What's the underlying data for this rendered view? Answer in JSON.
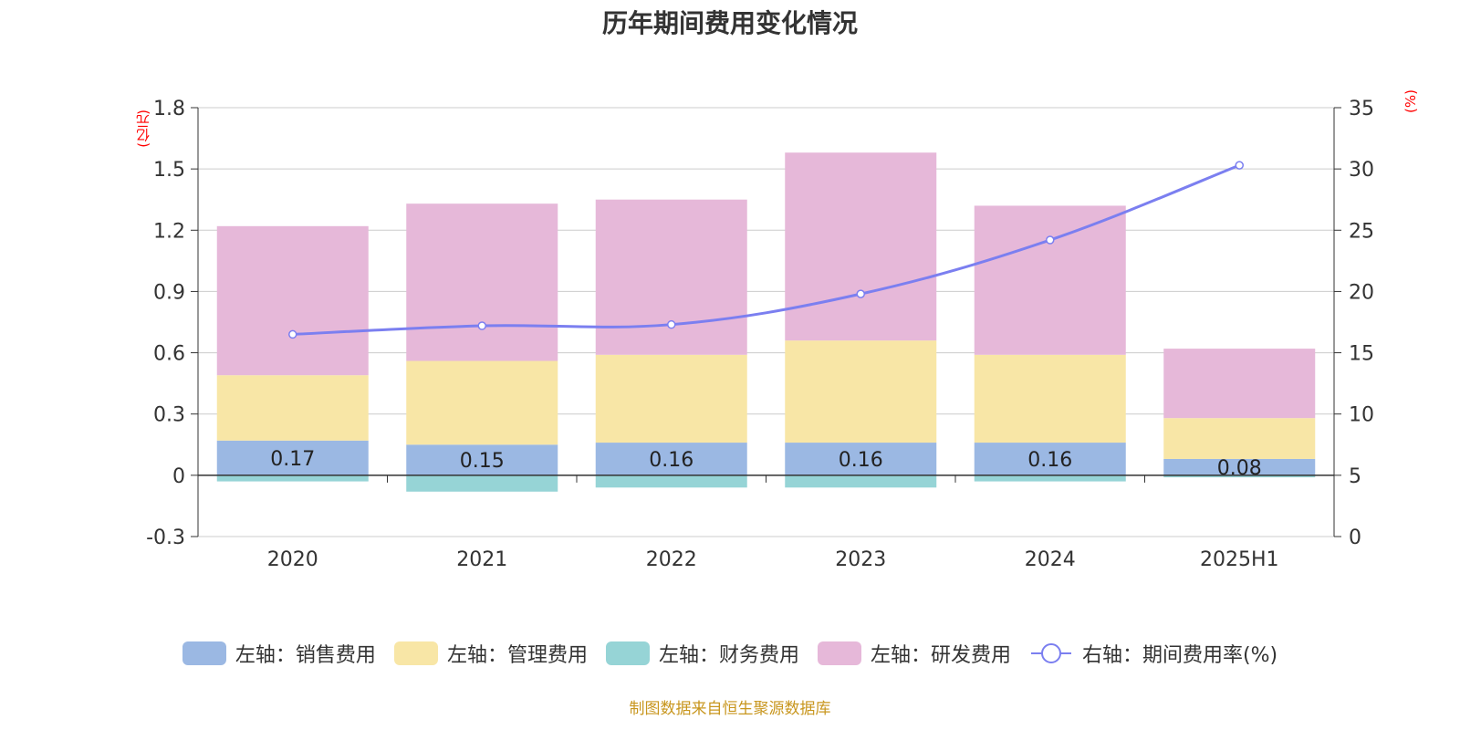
{
  "chart_data": {
    "type": "bar",
    "title": "历年期间费用变化情况",
    "categories": [
      "2020",
      "2021",
      "2022",
      "2023",
      "2024",
      "2025H1"
    ],
    "left_axis": {
      "unit": "(亿元)",
      "ylim": [
        -0.3,
        1.8
      ],
      "ticks": [
        "1.8",
        "1.5",
        "1.2",
        "0.9",
        "0.6",
        "0.3",
        "0",
        "-0.3"
      ]
    },
    "right_axis": {
      "unit": "(%)",
      "ylim": [
        0,
        35
      ],
      "ticks": [
        "35",
        "30",
        "25",
        "20",
        "15",
        "10",
        "5",
        "0"
      ]
    },
    "series": [
      {
        "name": "左轴：销售费用",
        "type": "bar",
        "stack": true,
        "color": "#9bb8e3",
        "values": [
          0.17,
          0.15,
          0.16,
          0.16,
          0.16,
          0.08
        ],
        "data_labels": [
          "0.17",
          "0.15",
          "0.16",
          "0.16",
          "0.16",
          "0.08"
        ]
      },
      {
        "name": "左轴：管理费用",
        "type": "bar",
        "stack": true,
        "color": "#f8e6a6",
        "values": [
          0.32,
          0.41,
          0.43,
          0.5,
          0.43,
          0.2
        ]
      },
      {
        "name": "左轴：财务费用",
        "type": "bar",
        "stack": true,
        "color": "#96d4d6",
        "values": [
          -0.03,
          -0.08,
          -0.06,
          -0.06,
          -0.03,
          -0.01
        ]
      },
      {
        "name": "左轴：研发费用",
        "type": "bar",
        "stack": true,
        "color": "#e6b8d9",
        "values": [
          0.73,
          0.77,
          0.76,
          0.92,
          0.73,
          0.34
        ]
      },
      {
        "name": "右轴：期间费用率(%)",
        "type": "line",
        "axis": "right",
        "color": "#7b7ff0",
        "values": [
          16.5,
          17.2,
          17.3,
          19.8,
          24.2,
          30.3
        ]
      }
    ],
    "grid": true,
    "legend_position": "bottom"
  },
  "source_note": "制图数据来自恒生聚源数据库"
}
